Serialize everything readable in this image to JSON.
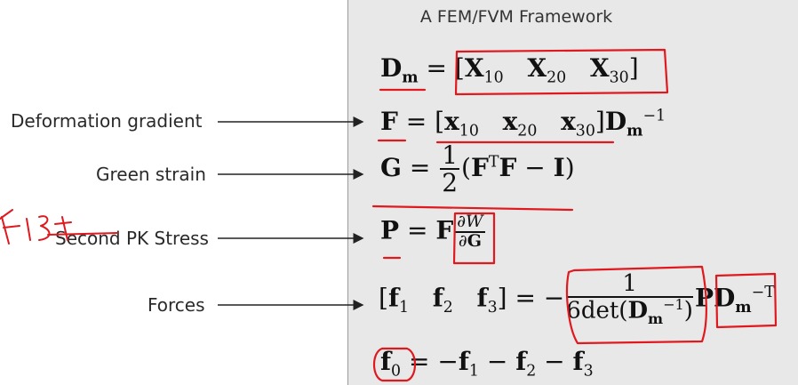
{
  "title": "A FEM/FVM Framework",
  "labels": {
    "deformation_gradient": "Deformation gradient",
    "green_strain": "Green strain",
    "second_pk_stress": "Second PK Stress",
    "forces": "Forces"
  },
  "annotation": {
    "handwritten_word": "First"
  },
  "colors": {
    "panel_bg": "#e8e8e8",
    "annotation_red": "#e0191f",
    "text": "#111111"
  }
}
